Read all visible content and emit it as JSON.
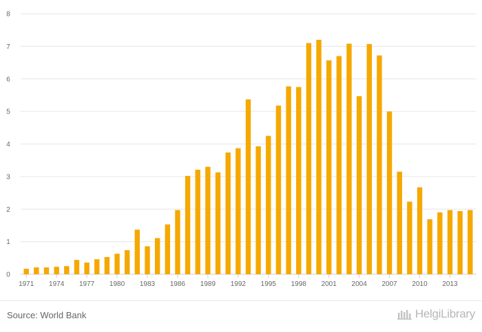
{
  "chart_data": {
    "type": "bar",
    "title": "",
    "xlabel": "",
    "ylabel": "",
    "x": [
      1971,
      1972,
      1973,
      1974,
      1975,
      1976,
      1977,
      1978,
      1979,
      1980,
      1981,
      1982,
      1983,
      1984,
      1985,
      1986,
      1987,
      1988,
      1989,
      1990,
      1991,
      1992,
      1993,
      1994,
      1995,
      1996,
      1997,
      1998,
      1999,
      2000,
      2001,
      2002,
      2003,
      2004,
      2005,
      2006,
      2007,
      2008,
      2009,
      2010,
      2011,
      2012,
      2013,
      2014,
      2015
    ],
    "values": [
      0.17,
      0.21,
      0.21,
      0.23,
      0.25,
      0.44,
      0.36,
      0.46,
      0.53,
      0.63,
      0.74,
      1.37,
      0.86,
      1.11,
      1.53,
      1.97,
      3.02,
      3.21,
      3.3,
      3.13,
      3.74,
      3.87,
      5.37,
      3.93,
      4.25,
      5.18,
      5.77,
      5.75,
      7.1,
      7.2,
      6.57,
      6.7,
      7.08,
      5.47,
      7.07,
      6.72,
      5.0,
      3.15,
      2.23,
      2.67,
      1.69,
      1.9,
      1.97,
      1.94,
      1.97
    ],
    "x_tick_labels": [
      "1971",
      "1974",
      "1977",
      "1980",
      "1983",
      "1986",
      "1989",
      "1992",
      "1995",
      "1998",
      "2001",
      "2004",
      "2007",
      "2010",
      "2013"
    ],
    "y_tick_labels": [
      "0",
      "1",
      "2",
      "3",
      "4",
      "5",
      "6",
      "7",
      "8"
    ],
    "ylim": [
      0,
      8
    ],
    "grid": true,
    "legend": "none",
    "colors": {
      "bar": "#f5a800",
      "grid": "#e6e6e6",
      "axis_text": "#666666"
    }
  },
  "footer": {
    "source": "Source: World Bank",
    "brand": "HelgiLibrary"
  }
}
